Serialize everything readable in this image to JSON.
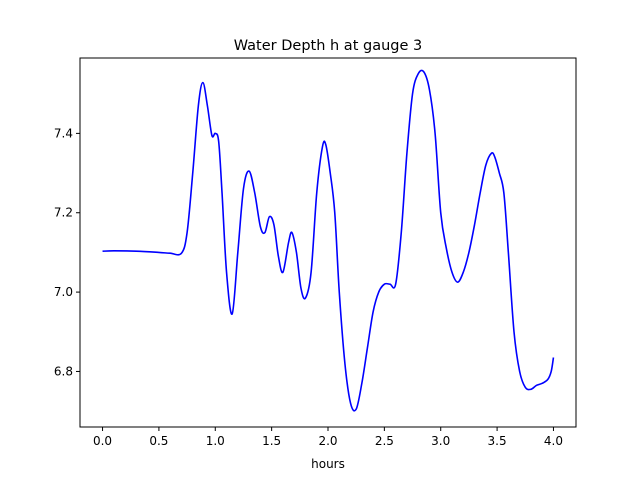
{
  "chart_data": {
    "type": "line",
    "title": "Water Depth h at gauge 3",
    "xlabel": "hours",
    "ylabel": "",
    "xlim": [
      -0.2,
      4.2
    ],
    "ylim": [
      6.66,
      7.59
    ],
    "xticks": [
      0.0,
      0.5,
      1.0,
      1.5,
      2.0,
      2.5,
      3.0,
      3.5,
      4.0
    ],
    "xtick_labels": [
      "0.0",
      "0.5",
      "1.0",
      "1.5",
      "2.0",
      "2.5",
      "3.0",
      "3.5",
      "4.0"
    ],
    "yticks": [
      6.8,
      7.0,
      7.2,
      7.4
    ],
    "ytick_labels": [
      "6.8",
      "7.0",
      "7.2",
      "7.4"
    ],
    "grid": false,
    "legend": "none",
    "series": [
      {
        "color": "#0000ff",
        "x": [
          0.0,
          0.1,
          0.3,
          0.5,
          0.6,
          0.7,
          0.75,
          0.8,
          0.85,
          0.89,
          0.93,
          0.97,
          1.0,
          1.03,
          1.06,
          1.1,
          1.15,
          1.2,
          1.25,
          1.3,
          1.35,
          1.4,
          1.44,
          1.48,
          1.52,
          1.56,
          1.6,
          1.65,
          1.68,
          1.72,
          1.76,
          1.8,
          1.85,
          1.9,
          1.95,
          1.98,
          2.02,
          2.06,
          2.1,
          2.15,
          2.2,
          2.25,
          2.3,
          2.35,
          2.4,
          2.45,
          2.5,
          2.55,
          2.6,
          2.65,
          2.7,
          2.75,
          2.8,
          2.85,
          2.9,
          2.95,
          3.0,
          3.05,
          3.1,
          3.15,
          3.2,
          3.25,
          3.3,
          3.35,
          3.4,
          3.45,
          3.48,
          3.52,
          3.56,
          3.6,
          3.65,
          3.7,
          3.75,
          3.8,
          3.85,
          3.9,
          3.95,
          3.98,
          4.0
        ],
        "y": [
          7.103,
          7.104,
          7.103,
          7.1,
          7.098,
          7.098,
          7.15,
          7.3,
          7.47,
          7.528,
          7.47,
          7.395,
          7.4,
          7.38,
          7.25,
          7.05,
          6.945,
          7.1,
          7.26,
          7.305,
          7.25,
          7.165,
          7.15,
          7.19,
          7.17,
          7.09,
          7.05,
          7.125,
          7.15,
          7.1,
          7.01,
          6.985,
          7.05,
          7.25,
          7.365,
          7.372,
          7.3,
          7.2,
          7.0,
          6.82,
          6.72,
          6.705,
          6.77,
          6.86,
          6.95,
          7.0,
          7.02,
          7.02,
          7.02,
          7.15,
          7.35,
          7.5,
          7.55,
          7.555,
          7.51,
          7.4,
          7.2,
          7.11,
          7.05,
          7.025,
          7.05,
          7.1,
          7.17,
          7.25,
          7.32,
          7.35,
          7.34,
          7.3,
          7.25,
          7.1,
          6.9,
          6.8,
          6.76,
          6.755,
          6.765,
          6.77,
          6.78,
          6.8,
          6.835
        ]
      }
    ]
  }
}
